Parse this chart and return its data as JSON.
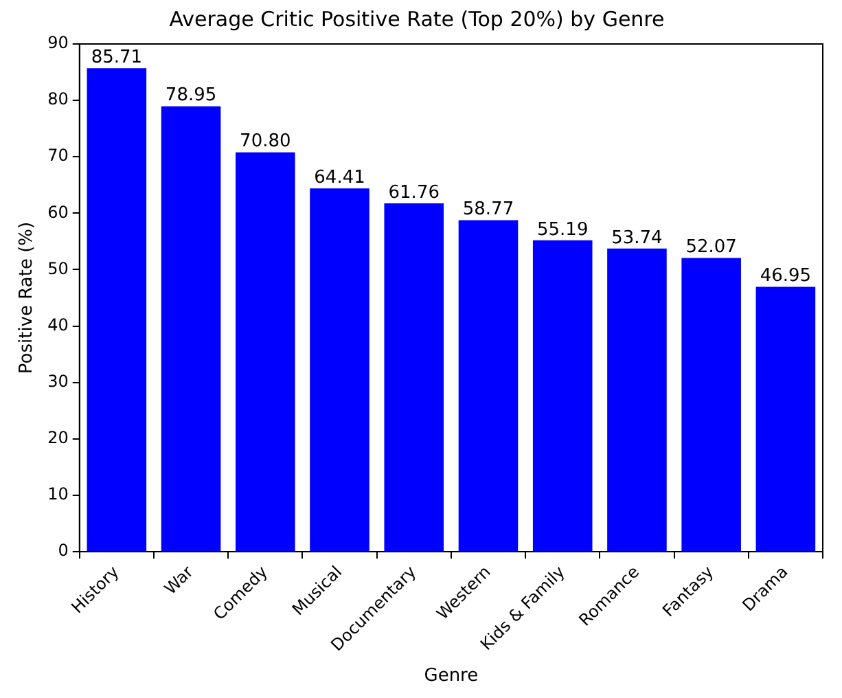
{
  "chart_data": {
    "type": "bar",
    "title": "Average Critic Positive Rate (Top 20%) by Genre",
    "xlabel": "Genre",
    "ylabel": "Positive Rate (%)",
    "categories": [
      "History",
      "War",
      "Comedy",
      "Musical",
      "Documentary",
      "Western",
      "Kids & Family",
      "Romance",
      "Fantasy",
      "Drama"
    ],
    "values": [
      85.71,
      78.95,
      70.8,
      64.41,
      61.76,
      58.77,
      55.19,
      53.74,
      52.07,
      46.95
    ],
    "value_labels": [
      "85.71",
      "78.95",
      "70.80",
      "64.41",
      "61.76",
      "58.77",
      "55.19",
      "53.74",
      "52.07",
      "46.95"
    ],
    "color": "#0000ff",
    "ylim": [
      0,
      90
    ],
    "yticks": [
      0,
      10,
      20,
      30,
      40,
      50,
      60,
      70,
      80,
      90
    ],
    "grid": false,
    "legend": false
  }
}
